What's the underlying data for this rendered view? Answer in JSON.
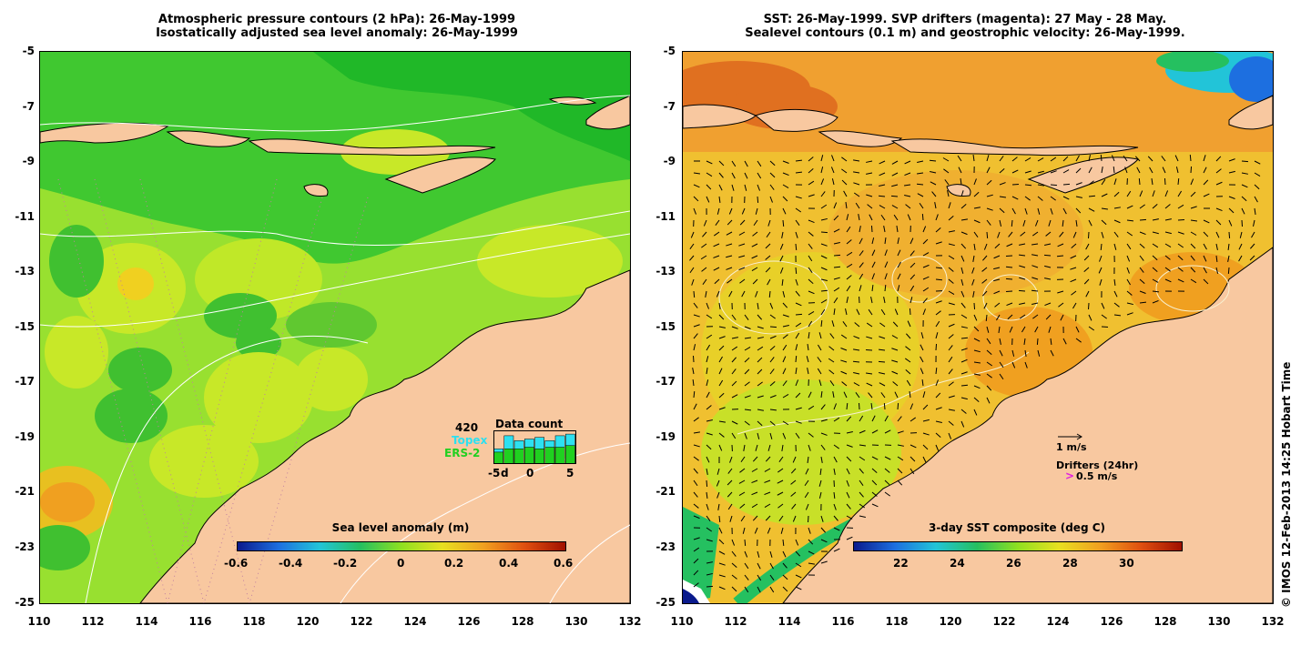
{
  "left": {
    "title_line1": "Atmospheric pressure contours (2 hPa): 26-May-1999",
    "title_line2": "Isostatically adjusted sea level anomaly: 26-May-1999",
    "colorbar": {
      "title": "Sea level anomaly (m)",
      "ticks": [
        "-0.6",
        "-0.4",
        "-0.2",
        "0",
        "0.2",
        "0.4",
        "0.6"
      ],
      "colors": [
        "#0a1a8c",
        "#1d6fe0",
        "#22c4d8",
        "#25c060",
        "#8fe020",
        "#e8e020",
        "#f0a020",
        "#e05010",
        "#a01000"
      ]
    },
    "inset": {
      "count": "420",
      "title": "Data count",
      "topex_label": "Topex",
      "ers_label": "ERS-2",
      "xticks": [
        "-5",
        "d",
        "0",
        "5"
      ],
      "topex_color": "#2de0f0",
      "ers_color": "#20d020",
      "bars_topex": [
        0.45,
        0.85,
        0.7,
        0.75,
        0.8,
        0.7,
        0.85,
        0.9
      ],
      "bars_ers": [
        0.35,
        0.45,
        0.45,
        0.5,
        0.45,
        0.5,
        0.5,
        0.55
      ]
    }
  },
  "right": {
    "title_line1": "SST: 26-May-1999. SVP drifters (magenta): 27 May - 28 May.",
    "title_line2": "Sealevel contours (0.1 m) and geostrophic velocity: 26-May-1999.",
    "legend": {
      "velocity_label": "1 m/s",
      "drifters_label": "Drifters (24hr)",
      "drifter_speed": "0.5 m/s",
      "drifter_color": "#e020e0"
    },
    "colorbar": {
      "title": "3-day SST composite (deg C)",
      "ticks": [
        "22",
        "24",
        "26",
        "28",
        "30"
      ],
      "colors": [
        "#0a1a8c",
        "#1d6fe0",
        "#22c4d8",
        "#25c060",
        "#8fe020",
        "#e8e020",
        "#f0a020",
        "#e05010",
        "#a01000"
      ]
    }
  },
  "axes": {
    "xticks": [
      "110",
      "112",
      "114",
      "116",
      "118",
      "120",
      "122",
      "124",
      "126",
      "128",
      "130",
      "132"
    ],
    "yticks": [
      "-5",
      "-7",
      "-9",
      "-11",
      "-13",
      "-15",
      "-17",
      "-19",
      "-21",
      "-23",
      "-25"
    ]
  },
  "credit": "© IMOS 12-Feb-2013 14:25 Hobart Time",
  "colors": {
    "land": "#f8c8a0",
    "sla_base": "#90e030",
    "sst_base": "#f0b030"
  }
}
